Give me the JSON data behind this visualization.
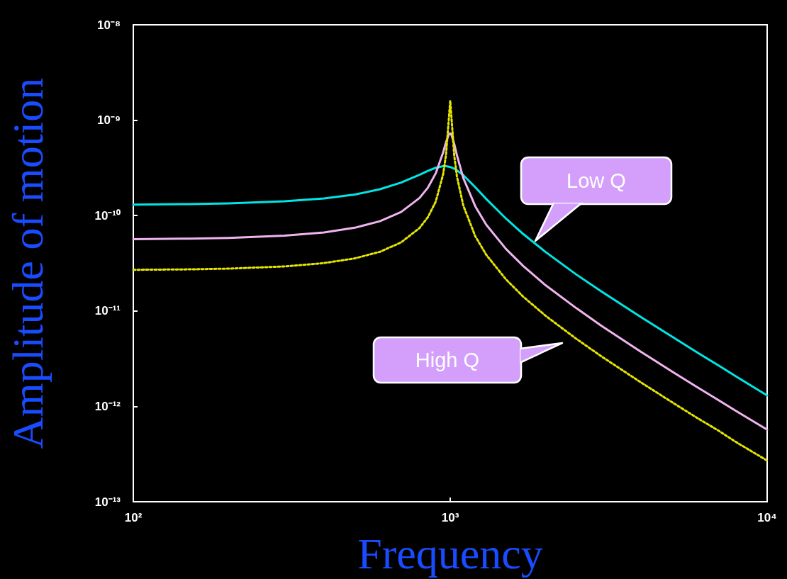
{
  "chart_data": {
    "type": "line",
    "xlabel": "Frequency",
    "ylabel": "Amplitude of motion",
    "log": "xy",
    "x": [
      100,
      150,
      200,
      300,
      400,
      500,
      600,
      700,
      800,
      850,
      900,
      950,
      970,
      990,
      1000,
      1010,
      1030,
      1050,
      1100,
      1200,
      1300,
      1500,
      1700,
      2000,
      2500,
      3000,
      4000,
      5000,
      6000,
      7000,
      8000,
      10000
    ],
    "series": [
      {
        "color": "#00e5e5",
        "line_style": "solid",
        "values": [
          1.3e-10,
          1.32e-10,
          1.34e-10,
          1.41e-10,
          1.51e-10,
          1.66e-10,
          1.89e-10,
          2.22e-10,
          2.68e-10,
          2.94e-10,
          3.17e-10,
          3.29e-10,
          3.29e-10,
          3.25e-10,
          3.23e-10,
          3.19e-10,
          3.1e-10,
          2.98e-10,
          2.65e-10,
          1.98e-10,
          1.49e-10,
          9.3e-11,
          6.4e-11,
          4.15e-11,
          2.41e-11,
          1.6e-11,
          8.6e-12,
          5.4e-12,
          3.7e-12,
          2.7e-12,
          2.05e-12,
          1.3e-12
        ]
      },
      {
        "color": "#efb4ef",
        "line_style": "solid",
        "values": [
          5.66e-11,
          5.73e-11,
          5.83e-11,
          6.15e-11,
          6.66e-11,
          7.46e-11,
          8.73e-11,
          1.09e-10,
          1.53e-10,
          1.96e-10,
          2.77e-10,
          4.6e-10,
          5.88e-10,
          7.12e-10,
          7.28e-10,
          6.97e-10,
          5.61e-10,
          4.29e-10,
          2.47e-10,
          1.25e-10,
          8e-11,
          4.46e-11,
          2.96e-11,
          1.86e-11,
          1.07e-11,
          7e-12,
          3.73e-12,
          2.33e-12,
          1.6e-12,
          1.17e-12,
          8.9e-13,
          5.7e-13
        ]
      },
      {
        "color": "#e5e500",
        "line_style": "dotted",
        "values": [
          2.7e-11,
          2.73e-11,
          2.78e-11,
          2.93e-11,
          3.18e-11,
          3.56e-11,
          4.17e-11,
          5.24e-11,
          7.41e-11,
          9.61e-11,
          1.4e-10,
          2.71e-10,
          4.36e-10,
          1.03e-09,
          1.6e-09,
          1.02e-09,
          4.22e-10,
          2.57e-10,
          1.27e-10,
          6.06e-11,
          3.87e-11,
          2.14e-11,
          1.41e-11,
          8.9e-12,
          5.1e-12,
          3.34e-12,
          1.78e-12,
          1.11e-12,
          7.6e-13,
          5.6e-13,
          4.2e-13,
          2.7e-13
        ]
      }
    ],
    "xlim": [
      100,
      10000
    ],
    "xticks": [
      {
        "value": 100,
        "label": "10²"
      },
      {
        "value": 1000,
        "label": "10³"
      },
      {
        "value": 10000,
        "label": "10⁴"
      }
    ],
    "ylim": [
      1e-13,
      1e-08
    ],
    "yticks": [
      {
        "value": 1e-13,
        "label": "10⁻¹³"
      },
      {
        "value": 1e-12,
        "label": "10⁻¹²"
      },
      {
        "value": 1e-11,
        "label": "10⁻¹¹"
      },
      {
        "value": 1e-10,
        "label": "10⁻¹⁰"
      },
      {
        "value": 1e-09,
        "label": "10⁻⁹"
      },
      {
        "value": 1e-08,
        "label": "10⁻⁸"
      }
    ],
    "grid": false,
    "marker": "none",
    "annotations": [
      "Low Q",
      "High Q"
    ]
  }
}
